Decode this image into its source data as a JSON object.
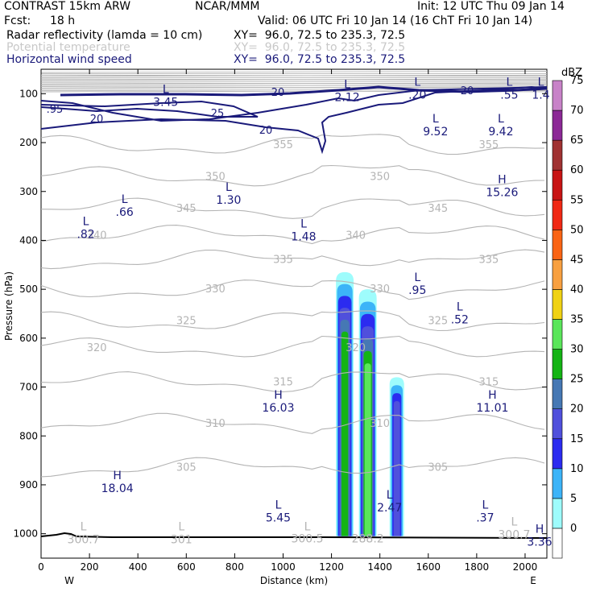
{
  "header": {
    "model": "CONTRAST 15km ARW",
    "org": "NCAR/MMM",
    "init": "Init: 12 UTC Thu 09 Jan 14",
    "fcst_label": "Fcst:",
    "fcst_value": "18 h",
    "valid": "Valid: 06 UTC Fri 10 Jan 14 (16 ChT Fri 10 Jan 14)",
    "fields": [
      {
        "name": "Radar reflectivity (lamda = 10 cm)",
        "xy": "XY=  96.0, 72.5 to 235.3, 72.5",
        "color": "#000000"
      },
      {
        "name": "Potential temperature",
        "xy": "XY=  96.0, 72.5 to 235.3, 72.5",
        "color": "#c8c8c8"
      },
      {
        "name": "Horizontal wind speed",
        "xy": "XY=  96.0, 72.5 to 235.3, 72.5",
        "color": "#1a1a7a"
      }
    ]
  },
  "chart_data": {
    "type": "cross-section",
    "xlabel": "Distance (km)",
    "ylabel": "Pressure (hPa)",
    "x_ticks": [
      0,
      200,
      400,
      600,
      800,
      1000,
      1200,
      1400,
      1600,
      1800,
      2000
    ],
    "x_range": [
      0,
      2090
    ],
    "y_ticks": [
      100,
      200,
      300,
      400,
      500,
      600,
      700,
      800,
      900,
      1000
    ],
    "y_range": [
      50,
      1050
    ],
    "west_label": "W",
    "east_label": "E",
    "colorbar": {
      "title": "dBZ",
      "levels": [
        0,
        5,
        10,
        15,
        20,
        25,
        30,
        35,
        40,
        45,
        50,
        55,
        60,
        65,
        70,
        75
      ],
      "colors": [
        "#ffffff",
        "#9efcfc",
        "#3cb4f8",
        "#2b2bf0",
        "#5050dc",
        "#4678b4",
        "#14b414",
        "#5ae65a",
        "#f0d214",
        "#f8a040",
        "#fa6414",
        "#f02814",
        "#c81414",
        "#a03232",
        "#8c2896",
        "#c882c8"
      ]
    },
    "theta_contours": [
      {
        "value": 300.5,
        "label": "300.5"
      },
      {
        "value": 305,
        "label": "305"
      },
      {
        "value": 310,
        "label": "310"
      },
      {
        "value": 315,
        "label": "315"
      },
      {
        "value": 320,
        "label": "320"
      },
      {
        "value": 325,
        "label": "325"
      },
      {
        "value": 330,
        "label": "330"
      },
      {
        "value": 335,
        "label": "335"
      },
      {
        "value": 340,
        "label": "340"
      },
      {
        "value": 345,
        "label": "345"
      },
      {
        "value": 350,
        "label": "350"
      },
      {
        "value": 355,
        "label": "355"
      }
    ],
    "wind_contours": [
      20,
      25
    ],
    "highs_lows": [
      {
        "type": "L",
        "value": "3.45",
        "x": 515,
        "p": 105,
        "field": "wind"
      },
      {
        "type": "L",
        "value": "2.12",
        "x": 1265,
        "p": 95,
        "field": "wind"
      },
      {
        "type": "L",
        "value": ".20",
        "x": 1555,
        "p": 90,
        "field": "wind"
      },
      {
        "type": "L",
        "value": ".55",
        "x": 1935,
        "p": 90,
        "field": "wind"
      },
      {
        "type": "L",
        "value": "1.4",
        "x": 2065,
        "p": 90,
        "field": "wind"
      },
      {
        "type": "L",
        "value": "9.52",
        "x": 1630,
        "p": 165,
        "field": "wind"
      },
      {
        "type": "L",
        "value": "9.42",
        "x": 1900,
        "p": 165,
        "field": "wind"
      },
      {
        "type": "H",
        "value": "15.26",
        "x": 1905,
        "p": 290,
        "field": "wind"
      },
      {
        "type": "L",
        "value": "1.30",
        "x": 775,
        "p": 305,
        "field": "wind"
      },
      {
        "type": "L",
        "value": ".66",
        "x": 345,
        "p": 330,
        "field": "wind"
      },
      {
        "type": "L",
        "value": ".82",
        "x": 185,
        "p": 375,
        "field": "wind"
      },
      {
        "type": "L",
        "value": "1.48",
        "x": 1085,
        "p": 380,
        "field": "wind"
      },
      {
        "type": "L",
        "value": ".95",
        "x": 1555,
        "p": 490,
        "field": "wind"
      },
      {
        "type": "L",
        "value": ".52",
        "x": 1730,
        "p": 550,
        "field": "wind"
      },
      {
        "type": "H",
        "value": "16.03",
        "x": 980,
        "p": 730,
        "field": "wind"
      },
      {
        "type": "H",
        "value": "11.01",
        "x": 1865,
        "p": 730,
        "field": "wind"
      },
      {
        "type": "H",
        "value": "18.04",
        "x": 315,
        "p": 895,
        "field": "wind"
      },
      {
        "type": "L",
        "value": "2.47",
        "x": 1440,
        "p": 935,
        "field": "wind"
      },
      {
        "type": "L",
        "value": ".37",
        "x": 1835,
        "p": 955,
        "field": "wind"
      },
      {
        "type": "L",
        "value": "5.45",
        "x": 980,
        "p": 955,
        "field": "wind"
      },
      {
        "type": "H",
        "value": "3.36",
        "x": 2060,
        "p": 1005,
        "field": "wind"
      },
      {
        "type": "L",
        "value": "300.7",
        "x": 175,
        "p": 1000,
        "field": "theta"
      },
      {
        "type": "L",
        "value": "301",
        "x": 580,
        "p": 1000,
        "field": "theta"
      },
      {
        "type": "L",
        "value": "300.7",
        "x": 1955,
        "p": 990,
        "field": "theta"
      },
      {
        "type": "L",
        "value": "",
        "x": 1100,
        "p": 1000,
        "field": "theta"
      }
    ],
    "theta_label_300": "300.5",
    "theta_label_low": "288.2",
    "reflectivity_cells": [
      {
        "x_center": 1255,
        "p_top": 465,
        "p_bot": 1005,
        "max_dbz": 30
      },
      {
        "x_center": 1350,
        "p_top": 500,
        "p_bot": 1005,
        "max_dbz": 35
      },
      {
        "x_center": 1470,
        "p_top": 680,
        "p_bot": 1005,
        "max_dbz": 20
      }
    ]
  }
}
